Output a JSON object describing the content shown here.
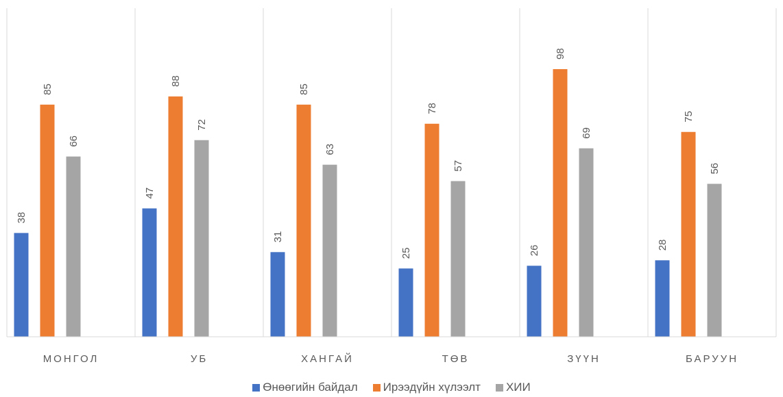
{
  "chart_data": {
    "type": "bar",
    "categories": [
      "МОНГОЛ",
      "УБ",
      "ХАНГАЙ",
      "ТӨВ",
      "ЗҮҮН",
      "БАРУУН"
    ],
    "series": [
      {
        "name": "Өнөөгийн байдал",
        "color": "#4472C4",
        "values": [
          38,
          47,
          31,
          25,
          26,
          28
        ]
      },
      {
        "name": "Ирээдүйн хүлээлт",
        "color": "#ED7D31",
        "values": [
          85,
          88,
          85,
          78,
          98,
          75
        ]
      },
      {
        "name": "ХИИ",
        "color": "#A5A5A5",
        "values": [
          66,
          72,
          63,
          57,
          69,
          56
        ]
      }
    ],
    "ylim": [
      0,
      105
    ],
    "grid": false,
    "category_separators": true,
    "legend_position": "bottom",
    "data_labels": "rotated"
  }
}
